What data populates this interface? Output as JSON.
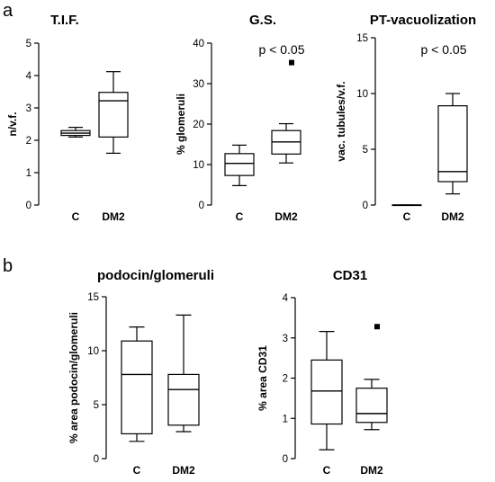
{
  "panels": [
    {
      "letter": "a"
    },
    {
      "letter": "b"
    }
  ],
  "chart_data": [
    {
      "type": "boxplot",
      "title": "T.I.F.",
      "ylabel": "n/v.f.",
      "ylim": [
        0,
        5
      ],
      "yticks": [
        "0",
        "1",
        "2",
        "3",
        "4",
        "5"
      ],
      "categories": [
        "C",
        "DM2"
      ],
      "boxes": [
        {
          "min": 2.1,
          "q1": 2.15,
          "median": 2.22,
          "q3": 2.3,
          "max": 2.4,
          "outliers": []
        },
        {
          "min": 1.6,
          "q1": 2.1,
          "median": 3.22,
          "q3": 3.48,
          "max": 4.12,
          "outliers": []
        }
      ],
      "annotation": ""
    },
    {
      "type": "boxplot",
      "title": "G.S.",
      "ylabel": "% glomeruli",
      "ylim": [
        0,
        40
      ],
      "yticks": [
        "0",
        "10",
        "20",
        "30",
        "40"
      ],
      "categories": [
        "C",
        "DM2"
      ],
      "boxes": [
        {
          "min": 4.8,
          "q1": 7.3,
          "median": 10.3,
          "q3": 12.7,
          "max": 14.8,
          "outliers": []
        },
        {
          "min": 10.4,
          "q1": 12.6,
          "median": 15.6,
          "q3": 18.4,
          "max": 20.1,
          "outliers": [
            35.2
          ]
        }
      ],
      "annotation": "p < 0.05"
    },
    {
      "type": "boxplot",
      "title": "PT-vacuolization",
      "ylabel": "vac. tubules/v.f.",
      "ylim": [
        0,
        15
      ],
      "yticks": [
        "0",
        "5",
        "10",
        "15"
      ],
      "categories": [
        "C",
        "DM2"
      ],
      "boxes": [
        {
          "min": 0.0,
          "q1": 0.0,
          "median": 0.0,
          "q3": 0.0,
          "max": 0.0,
          "outliers": []
        },
        {
          "min": 1.0,
          "q1": 2.1,
          "median": 3.0,
          "q3": 8.9,
          "max": 10.0,
          "outliers": []
        }
      ],
      "annotation": "p < 0.05"
    },
    {
      "type": "boxplot",
      "title": "podocin/glomeruli",
      "ylabel": "% area podocin/glomeruli",
      "ylim": [
        0,
        15
      ],
      "yticks": [
        "0",
        "5",
        "10",
        "15"
      ],
      "categories": [
        "C",
        "DM2"
      ],
      "boxes": [
        {
          "min": 1.6,
          "q1": 2.3,
          "median": 7.8,
          "q3": 10.9,
          "max": 12.2,
          "outliers": []
        },
        {
          "min": 2.5,
          "q1": 3.1,
          "median": 6.4,
          "q3": 7.8,
          "max": 13.3,
          "outliers": []
        }
      ],
      "annotation": ""
    },
    {
      "type": "boxplot",
      "title": "CD31",
      "ylabel": "% area CD31",
      "ylim": [
        0,
        4
      ],
      "yticks": [
        "0",
        "1",
        "2",
        "3",
        "4"
      ],
      "categories": [
        "C",
        "DM2"
      ],
      "boxes": [
        {
          "min": 0.22,
          "q1": 0.86,
          "median": 1.68,
          "q3": 2.45,
          "max": 3.16,
          "outliers": []
        },
        {
          "min": 0.72,
          "q1": 0.9,
          "median": 1.12,
          "q3": 1.75,
          "max": 1.97,
          "outliers": [
            3.28
          ]
        }
      ],
      "annotation": ""
    }
  ]
}
